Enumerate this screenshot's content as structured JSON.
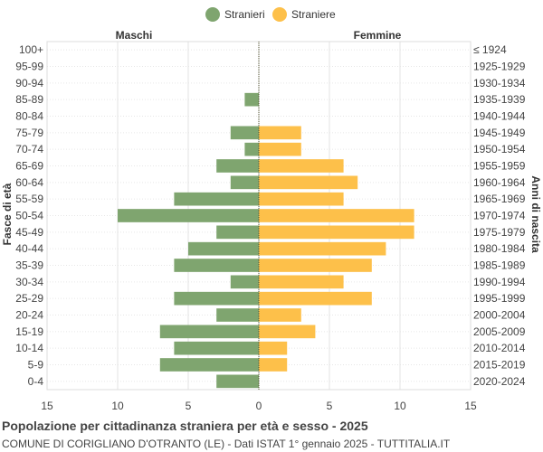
{
  "chart_data": {
    "type": "bar",
    "orientation": "horizontal-population-pyramid",
    "title": "Popolazione per cittadinanza straniera per età e sesso - 2025",
    "subtitle": "COMUNE DI CORIGLIANO D'OTRANTO (LE) - Dati ISTAT 1° gennaio 2025 - TUTTITALIA.IT",
    "ylabel_left": "Fasce di età",
    "ylabel_right": "Anni di nascita",
    "left_side_label": "Maschi",
    "right_side_label": "Femmine",
    "categories": [
      "100+",
      "95-99",
      "90-94",
      "85-89",
      "80-84",
      "75-79",
      "70-74",
      "65-69",
      "60-64",
      "55-59",
      "50-54",
      "45-49",
      "40-44",
      "35-39",
      "30-34",
      "25-29",
      "20-24",
      "15-19",
      "10-14",
      "5-9",
      "0-4"
    ],
    "birth_years": [
      "≤ 1924",
      "1925-1929",
      "1930-1934",
      "1935-1939",
      "1940-1944",
      "1945-1949",
      "1950-1954",
      "1955-1959",
      "1960-1964",
      "1965-1969",
      "1970-1974",
      "1975-1979",
      "1980-1984",
      "1985-1989",
      "1990-1994",
      "1995-1999",
      "2000-2004",
      "2005-2009",
      "2010-2014",
      "2015-2019",
      "2020-2024"
    ],
    "series": [
      {
        "name": "Stranieri",
        "color": "#7fa56f",
        "values": [
          0,
          0,
          0,
          1,
          0,
          2,
          1,
          3,
          2,
          6,
          10,
          3,
          5,
          6,
          2,
          6,
          3,
          7,
          6,
          7,
          3
        ]
      },
      {
        "name": "Straniere",
        "color": "#fdc04a",
        "values": [
          0,
          0,
          0,
          0,
          0,
          3,
          3,
          6,
          7,
          6,
          11,
          11,
          9,
          8,
          6,
          8,
          3,
          4,
          2,
          2,
          0
        ]
      }
    ],
    "xlim": [
      -15,
      15
    ],
    "xticks": [
      -15,
      -10,
      -5,
      0,
      5,
      10,
      15
    ],
    "xtick_labels": [
      "15",
      "10",
      "5",
      "0",
      "5",
      "10",
      "15"
    ],
    "grid": true,
    "legend_position": "top-center"
  }
}
